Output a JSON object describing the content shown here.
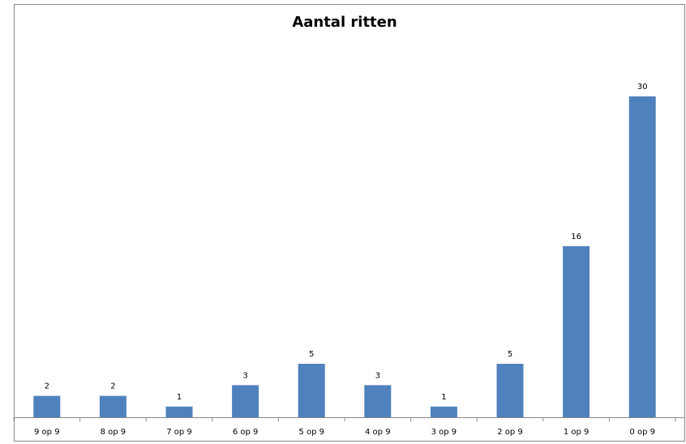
{
  "chart_data": {
    "type": "bar",
    "title": "Aantal ritten",
    "categories": [
      "9 op 9",
      "8 op 9",
      "7 op 9",
      "6 op 9",
      "5 op 9",
      "4 op 9",
      "3 op 9",
      "2 op 9",
      "1 op 9",
      "0 op 9"
    ],
    "values": [
      2,
      2,
      1,
      3,
      5,
      3,
      1,
      5,
      16,
      30
    ],
    "color": "#4f81bd"
  }
}
